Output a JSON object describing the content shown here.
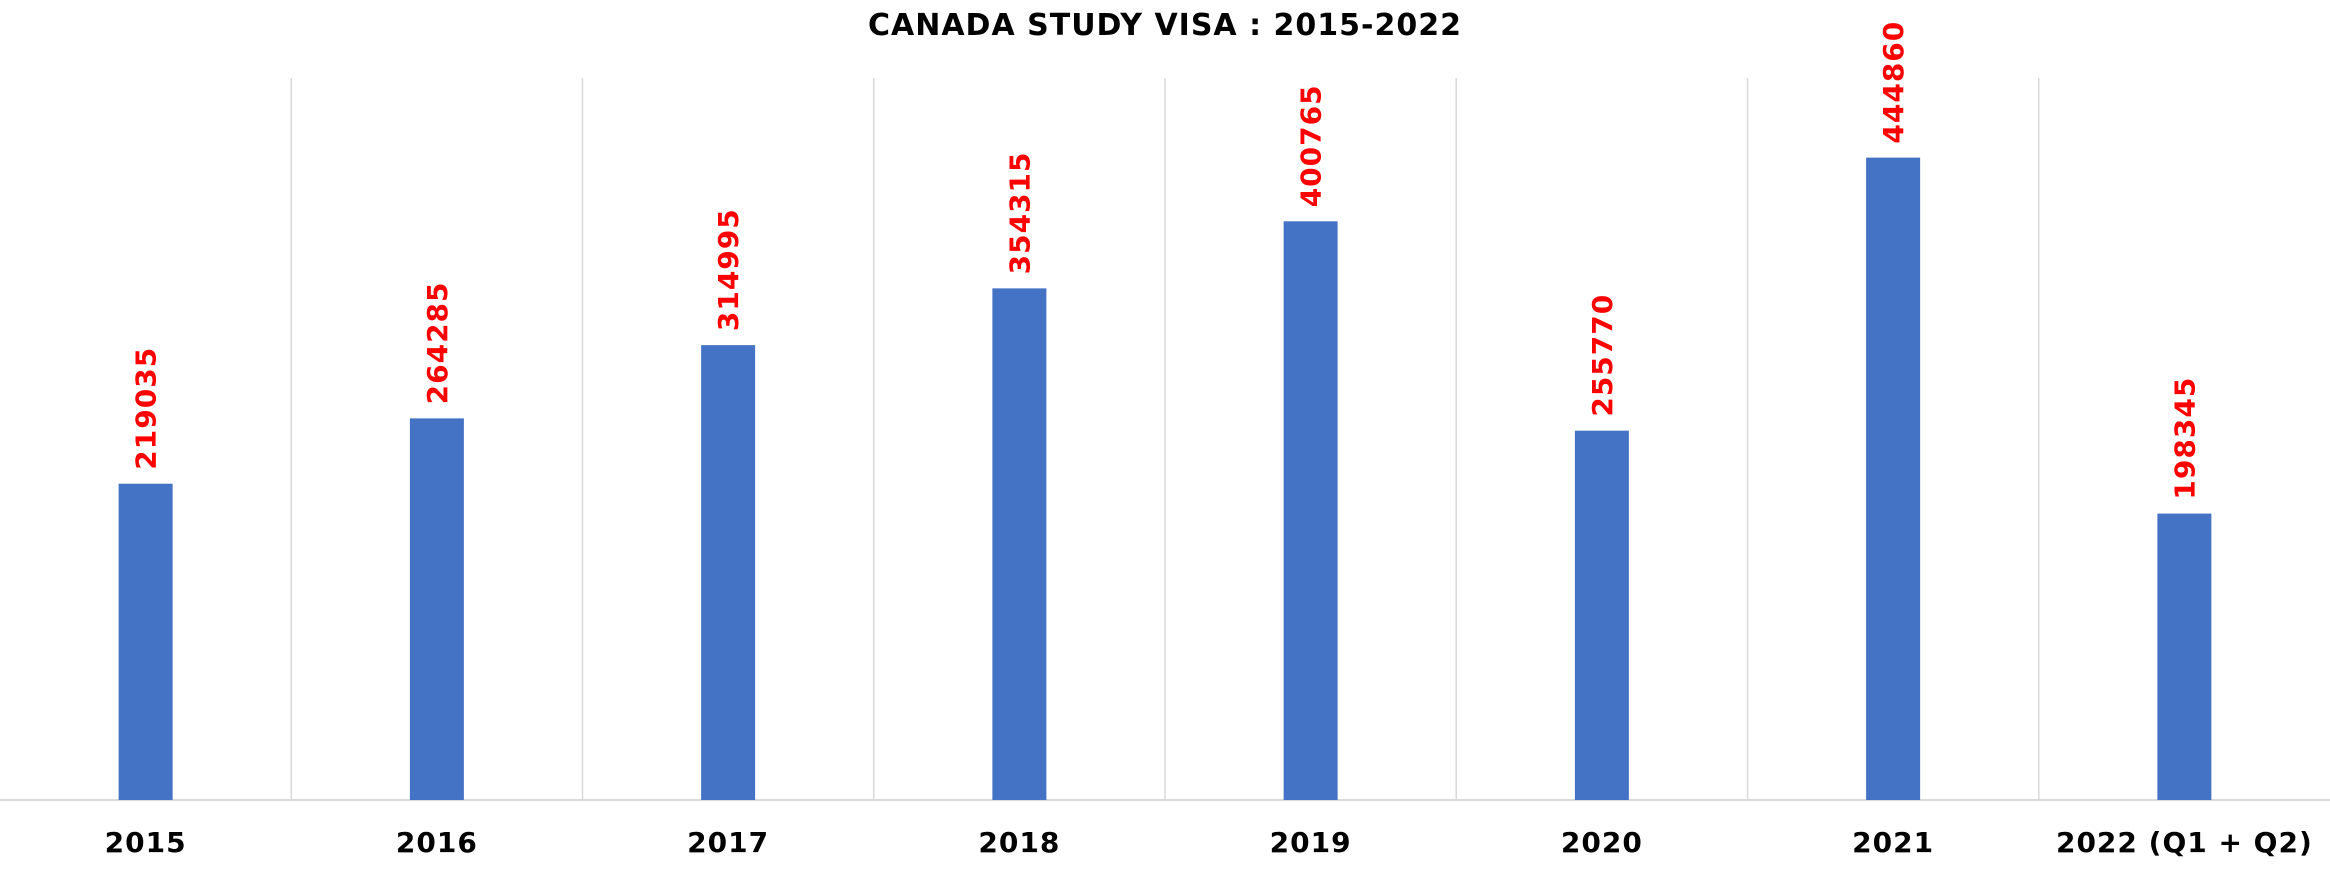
{
  "chart_data": {
    "type": "bar",
    "title": "CANADA STUDY VISA : 2015-2022",
    "xlabel": "",
    "ylabel": "",
    "categories": [
      "2015",
      "2016",
      "2017",
      "2018",
      "2019",
      "2020",
      "2021",
      "2022 (Q1 + Q2)"
    ],
    "values": [
      219035,
      264285,
      314995,
      354315,
      400765,
      255770,
      444860,
      198345
    ],
    "ylim": [
      0,
      500000
    ],
    "grid": "vertical category separators",
    "legend": "none",
    "colors": {
      "bar": "#4472C4",
      "data_label": "#FF0000",
      "grid": "#D9D9D9"
    }
  }
}
